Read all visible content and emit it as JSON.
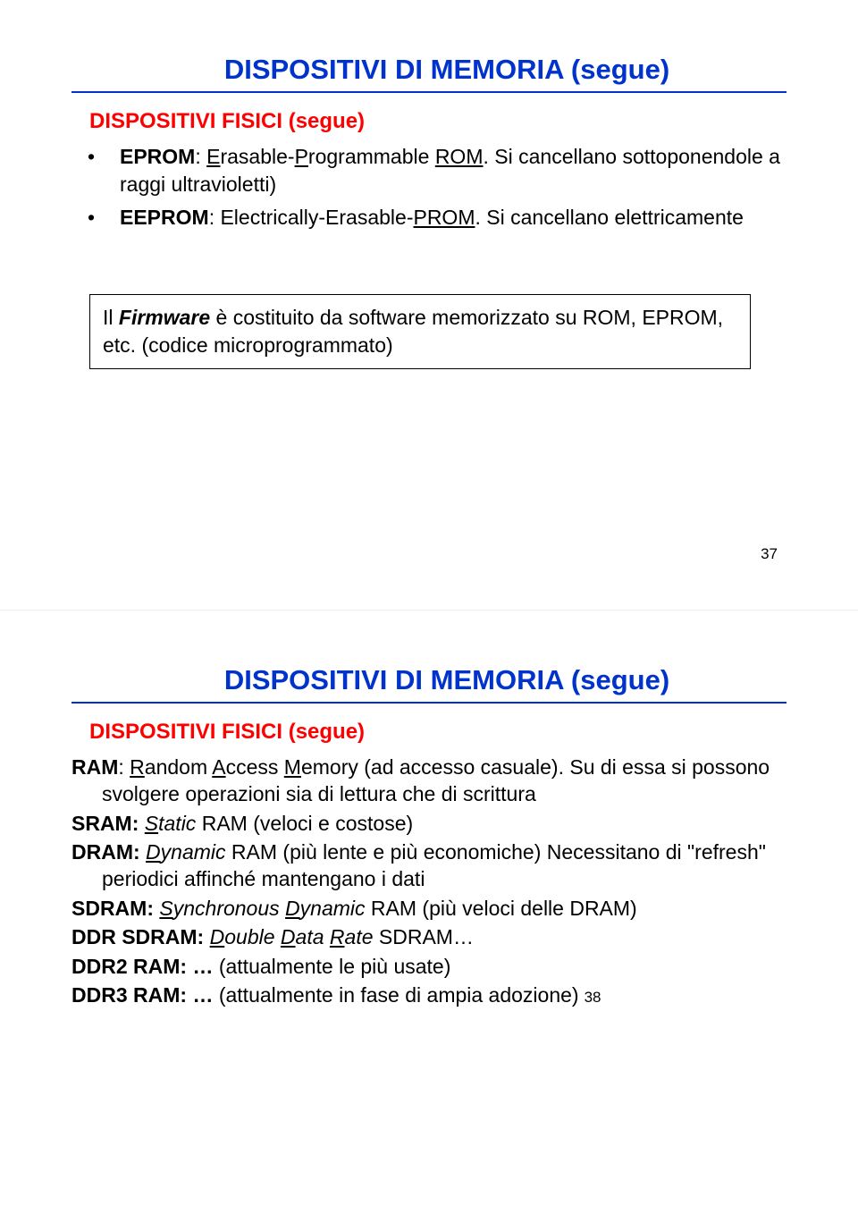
{
  "colors": {
    "title": "#0033cc",
    "subtitle": "#ff0000",
    "text": "#000000",
    "background": "#ffffff"
  },
  "slide1": {
    "title": "DISPOSITIVI DI MEMORIA (segue)",
    "subtitle": "DISPOSITIVI FISICI (segue)",
    "bullet1_bold": "EPROM",
    "bullet1_sep": ": ",
    "bullet1_u1": "E",
    "bullet1_t1": "rasable-",
    "bullet1_u2": "P",
    "bullet1_t2": "rogrammable ",
    "bullet1_u3": "ROM",
    "bullet1_t3": ". Si cancellano sottoponendole a raggi ultravioletti)",
    "bullet2_bold": "EEPROM",
    "bullet2_sep": ": Electrically-Erasable-",
    "bullet2_u1": "PROM",
    "bullet2_t1": ". Si cancellano elettricamente",
    "firmware_pre": "Il ",
    "firmware_bold": "Firmware",
    "firmware_post": " è costituito da software memorizzato su ROM, EPROM, etc. (codice microprogrammato)",
    "page": "37"
  },
  "slide2": {
    "title": "DISPOSITIVI DI MEMORIA (segue)",
    "subtitle": "DISPOSITIVI FISICI (segue)",
    "ram_bold": "RAM",
    "ram_sep": ": ",
    "ram_u1": "R",
    "ram_t1": "andom ",
    "ram_u2": "A",
    "ram_t2": "ccess ",
    "ram_u3": "M",
    "ram_t3": "emory (ad accesso casuale). Su di essa si possono svolgere operazioni sia di lettura che di scrittura",
    "sram_bold": "SRAM: ",
    "sram_u1": "S",
    "sram_i1": "tatic",
    "sram_t1": " RAM (veloci e costose)",
    "dram_bold": "DRAM: ",
    "dram_u1": "D",
    "dram_i1": "ynamic",
    "dram_t1": " RAM (più lente e più economiche) Necessitano di \"refresh\" periodici affinché mantengano i dati",
    "sdram_bold": "SDRAM: ",
    "sdram_u1": "S",
    "sdram_i1": "ynchronous ",
    "sdram_u2": "D",
    "sdram_i2": "ynamic",
    "sdram_t1": " RAM (più veloci delle DRAM)",
    "ddrsdram_bold": "DDR SDRAM: ",
    "ddrsdram_u1": "D",
    "ddrsdram_i1": "ouble ",
    "ddrsdram_u2": "D",
    "ddrsdram_i2": "ata ",
    "ddrsdram_u3": "R",
    "ddrsdram_i3": "ate",
    "ddrsdram_t1": " SDRAM…",
    "ddr2_bold": "DDR2 RAM: …",
    "ddr2_t1": " (attualmente le più usate)",
    "ddr3_bold": "DDR3 RAM: …",
    "ddr3_t1": " (attualmente in fase di ampia adozione)",
    "page": "38"
  }
}
